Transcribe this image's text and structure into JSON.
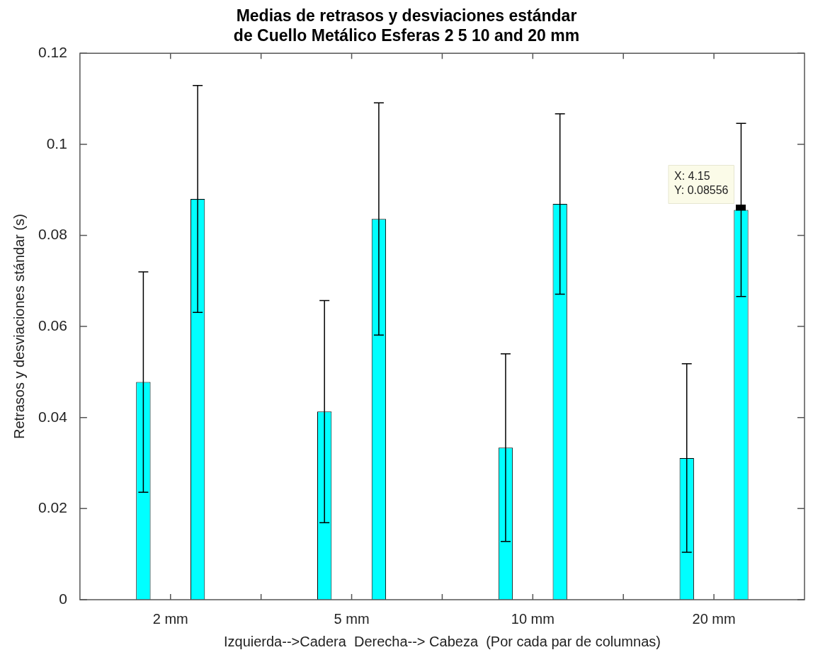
{
  "chart_data": {
    "type": "bar",
    "title": "Medias de retrasos y desviaciones estándar\nde Cuello Metálico Esferas 2 5 10 and 20 mm",
    "xlabel": "Izquierda-->Cadera  Derecha--> Cabeza  (Por cada par de columnas)",
    "ylabel": "Retrasos y desviaciones stándar (s)",
    "categories": [
      "2 mm",
      "5 mm",
      "10 mm",
      "20 mm"
    ],
    "ylim": [
      0,
      0.12
    ],
    "yticks": [
      0,
      0.02,
      0.04,
      0.06,
      0.08,
      0.1,
      0.12
    ],
    "series": [
      {
        "color": "#00ffff",
        "values": [
          0.0478,
          0.0413,
          0.0334,
          0.0311
        ],
        "errors": [
          0.0242,
          0.0244,
          0.0206,
          0.0207
        ]
      },
      {
        "color": "#00ffff",
        "values": [
          0.088,
          0.0836,
          0.0869,
          0.0856
        ],
        "errors": [
          0.0249,
          0.0255,
          0.0198,
          0.019
        ]
      }
    ],
    "annotations": [
      "X: 4.15\nY: 0.08556"
    ]
  }
}
